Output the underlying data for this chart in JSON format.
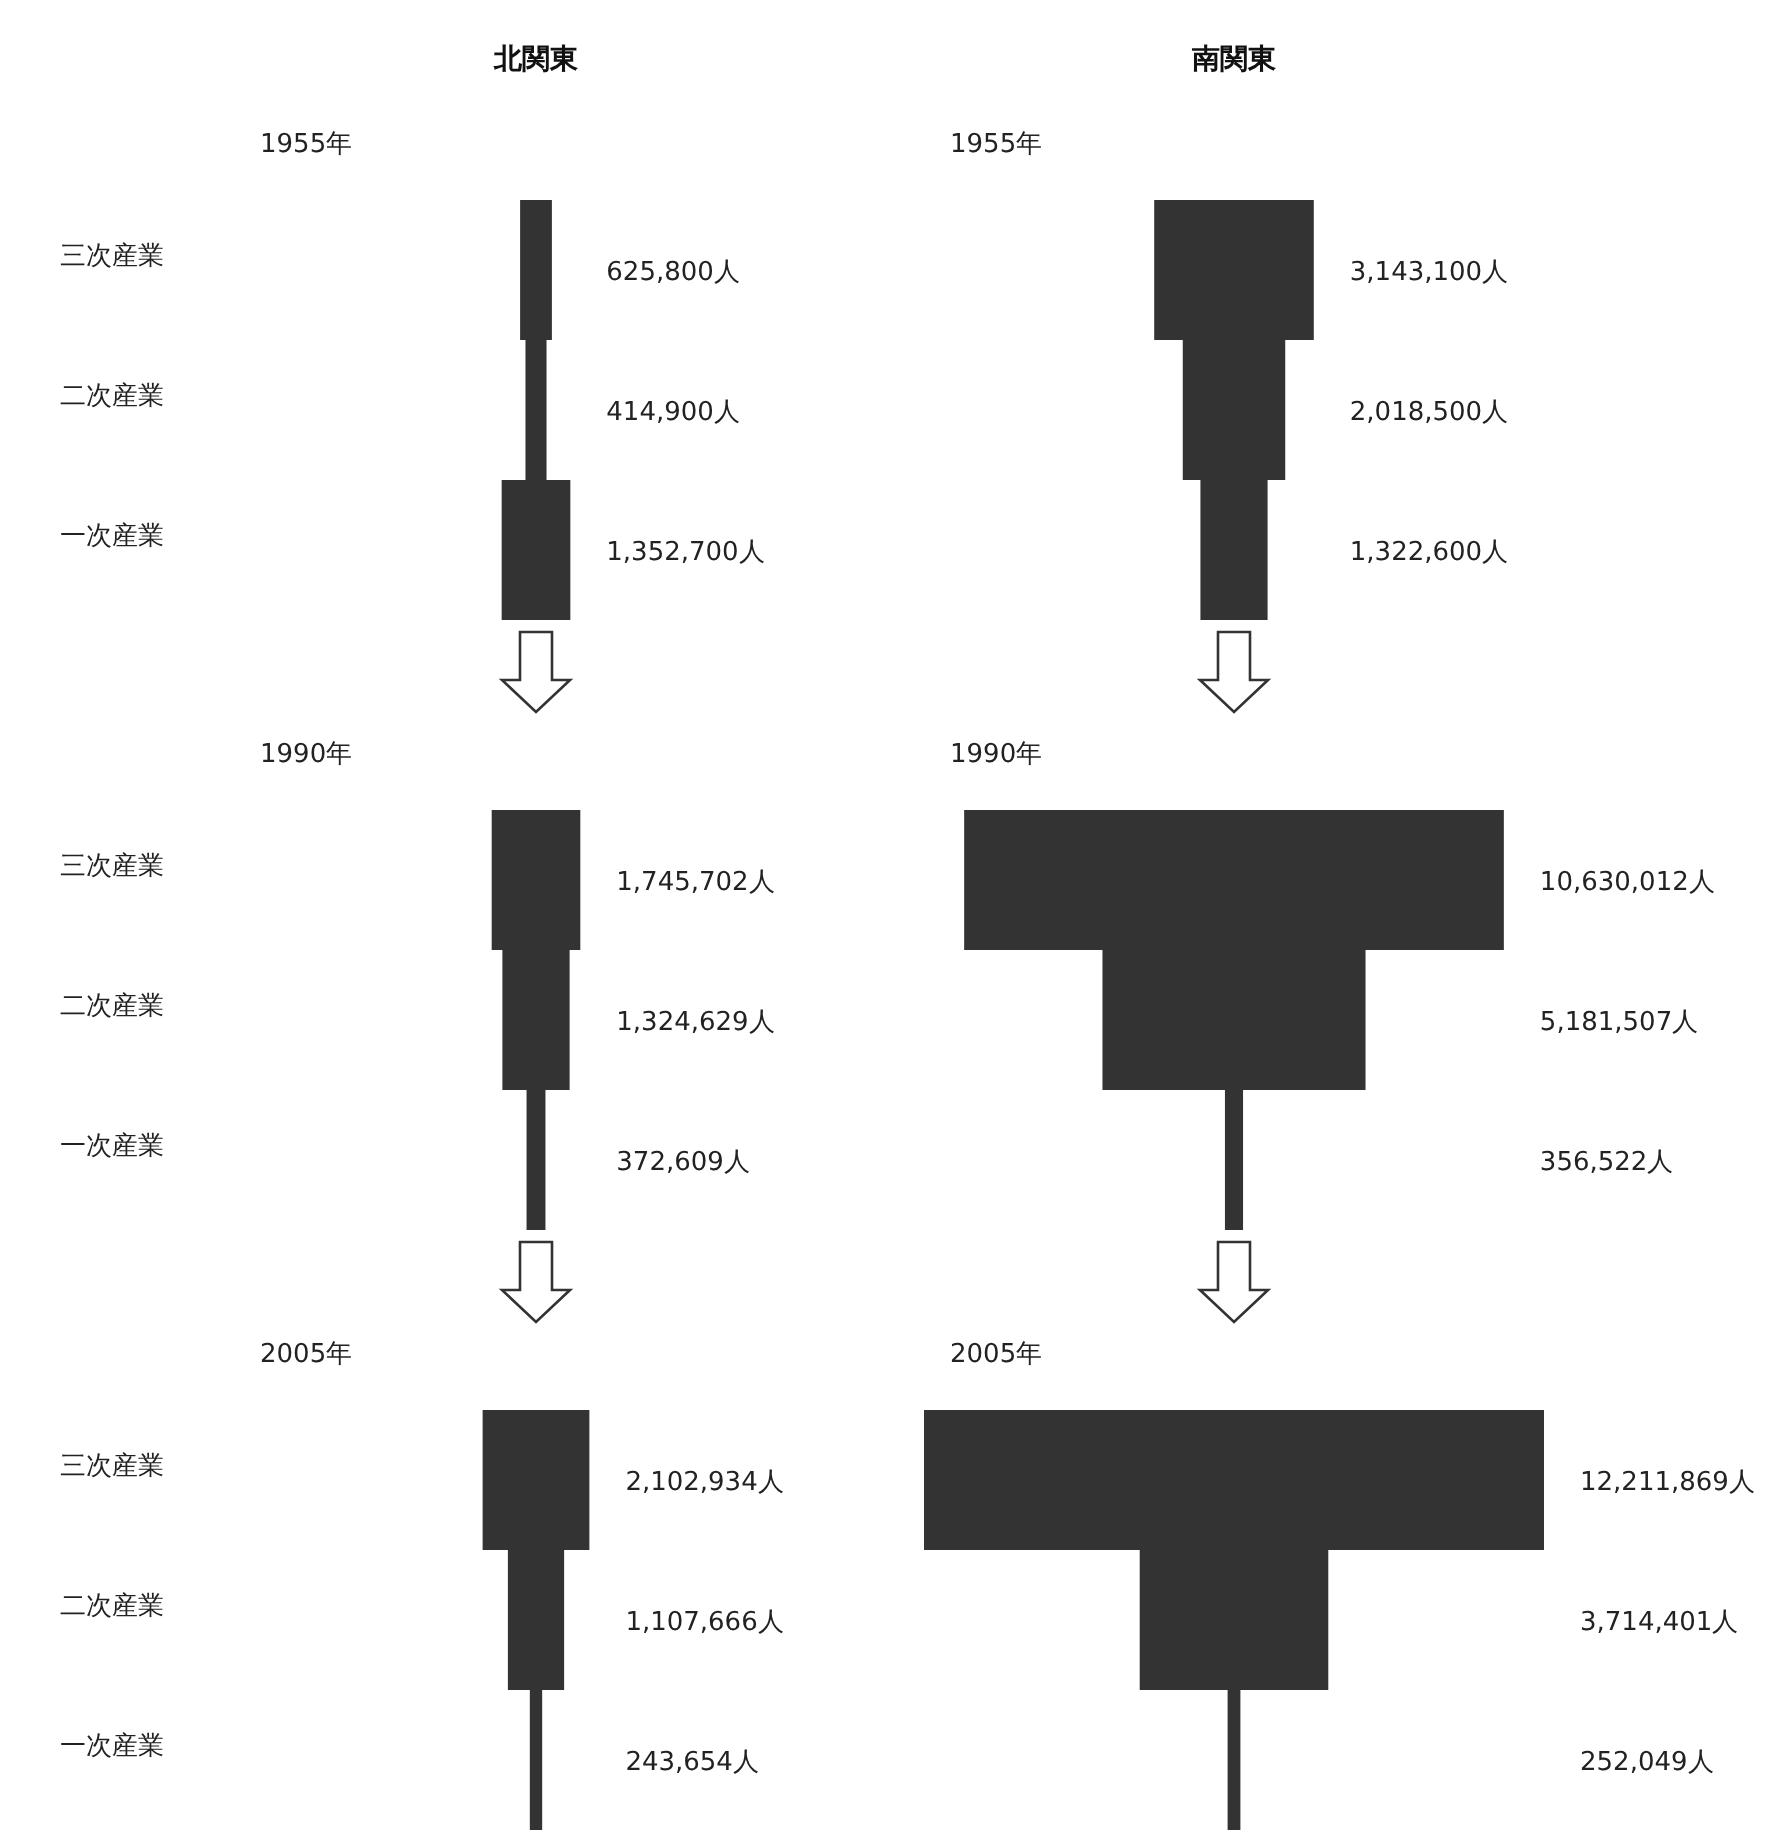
{
  "chart_data": [
    {
      "type": "other",
      "title": "北関東",
      "subtitle": "1955年",
      "categories": [
        "三次産業",
        "二次産業",
        "一次産業"
      ],
      "values": [
        625800,
        414900,
        1352700
      ],
      "value_labels": [
        "625,800人",
        "414,900人",
        "1,352,700人"
      ]
    },
    {
      "type": "other",
      "title": "南関東",
      "subtitle": "1955年",
      "values": [
        3143100,
        2018500,
        1322600
      ],
      "value_labels": [
        "3,143,100人",
        "2,018,500人",
        "1,322,600人"
      ]
    },
    {
      "type": "other",
      "subtitle": "1990年",
      "categories": [
        "三次産業",
        "二次産業",
        "一次産業"
      ],
      "values": [
        1745702,
        1324629,
        372609
      ],
      "value_labels": [
        "1,745,702人",
        "1,324,629人",
        "372,609人"
      ]
    },
    {
      "type": "other",
      "subtitle": "1990年",
      "values": [
        10630012,
        5181507,
        356522
      ],
      "value_labels": [
        "10,630,012人",
        "5,181,507人",
        "356,522人"
      ]
    },
    {
      "type": "other",
      "subtitle": "2005年",
      "categories": [
        "三次産業",
        "二次産業",
        "一次産業"
      ],
      "values": [
        2102934,
        1107666,
        243654
      ],
      "value_labels": [
        "2,102,934人",
        "1,107,666人",
        "243,654人"
      ]
    },
    {
      "type": "other",
      "subtitle": "2005年",
      "values": [
        12211869,
        3714401,
        252049
      ],
      "value_labels": [
        "12,211,869人",
        "3,714,401人",
        "252,049人"
      ]
    }
  ]
}
